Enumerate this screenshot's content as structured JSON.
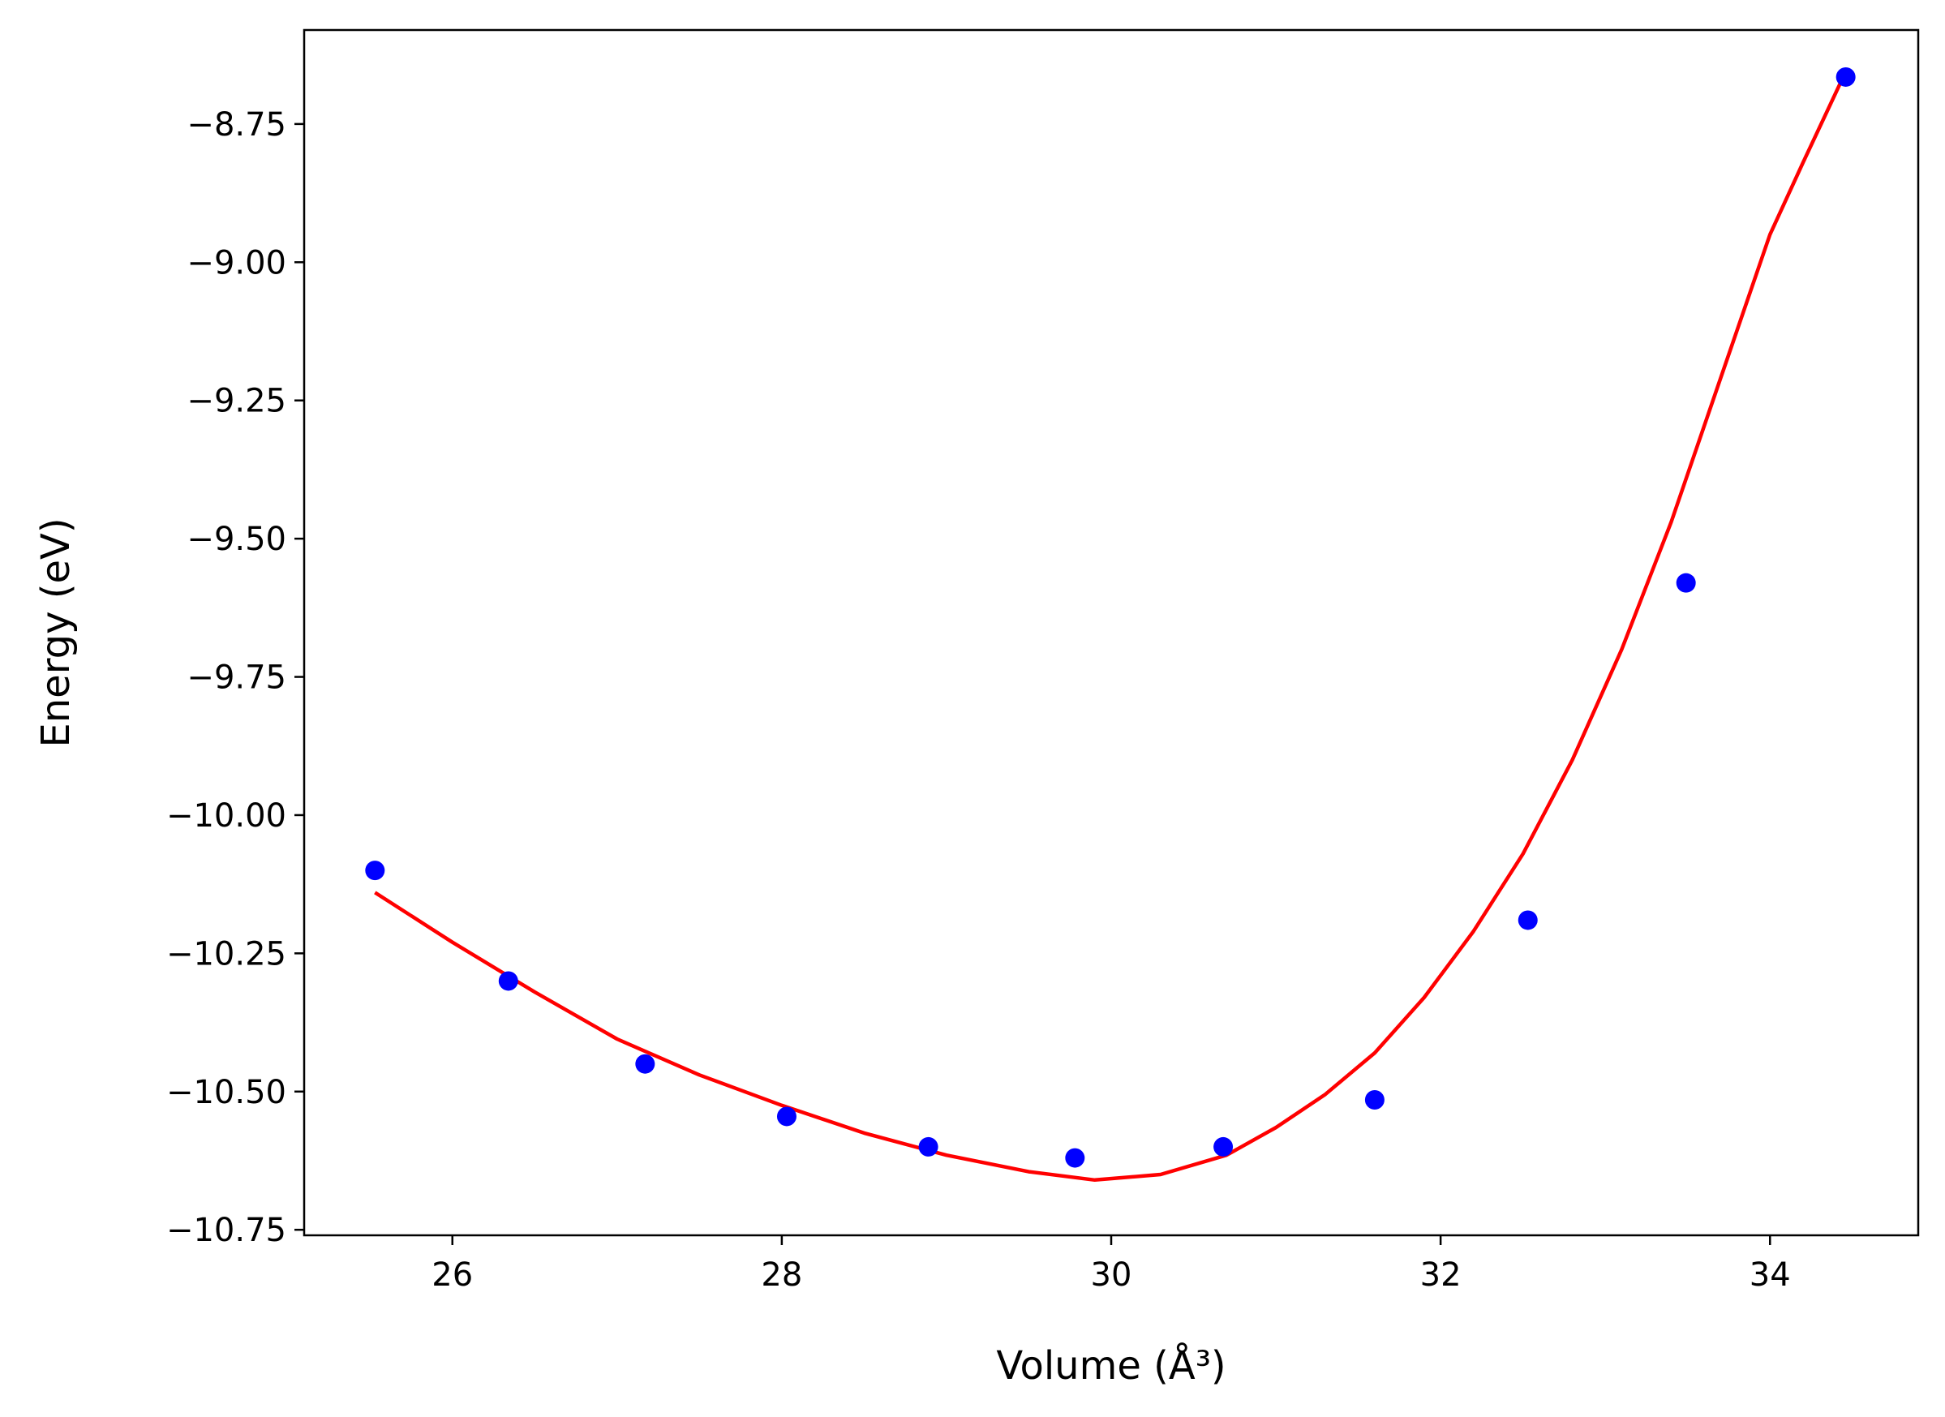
{
  "chart_data": {
    "type": "scatter",
    "xlabel": "Volume (Å³)",
    "ylabel": "Energy (eV)",
    "xlim": [
      25.1,
      34.9
    ],
    "ylim": [
      -10.76,
      -8.58
    ],
    "x_ticks": [
      26,
      28,
      30,
      32,
      34
    ],
    "y_ticks": [
      -8.75,
      -9.0,
      -9.25,
      -9.5,
      -9.75,
      -10.0,
      -10.25,
      -10.5,
      -10.75
    ],
    "x_tick_labels": [
      "26",
      "28",
      "30",
      "32",
      "34"
    ],
    "y_tick_labels": [
      "−8.75",
      "−9.00",
      "−9.25",
      "−9.50",
      "−9.75",
      "−10.00",
      "−10.25",
      "−10.50",
      "−10.75"
    ],
    "grid": false,
    "series": [
      {
        "kind": "scatter",
        "color": "#0000ff",
        "x": [
          25.53,
          26.34,
          27.17,
          28.03,
          28.89,
          29.78,
          30.68,
          31.6,
          32.53,
          33.49,
          34.46
        ],
        "y": [
          -10.1,
          -10.3,
          -10.45,
          -10.545,
          -10.6,
          -10.62,
          -10.6,
          -10.515,
          -10.19,
          -9.58,
          -8.665
        ]
      },
      {
        "kind": "line",
        "color": "#ff0000",
        "x": [
          25.53,
          26.0,
          26.5,
          27.0,
          27.5,
          28.0,
          28.5,
          29.0,
          29.5,
          29.9,
          30.3,
          30.7,
          31.0,
          31.3,
          31.6,
          31.9,
          32.2,
          32.5,
          32.8,
          33.1,
          33.4,
          33.7,
          34.0,
          34.2,
          34.46
        ],
        "y": [
          -10.14,
          -10.23,
          -10.32,
          -10.405,
          -10.47,
          -10.525,
          -10.575,
          -10.615,
          -10.645,
          -10.66,
          -10.65,
          -10.615,
          -10.565,
          -10.505,
          -10.43,
          -10.33,
          -10.21,
          -10.07,
          -9.9,
          -9.7,
          -9.47,
          -9.21,
          -8.95,
          -8.82,
          -8.655
        ]
      }
    ]
  }
}
